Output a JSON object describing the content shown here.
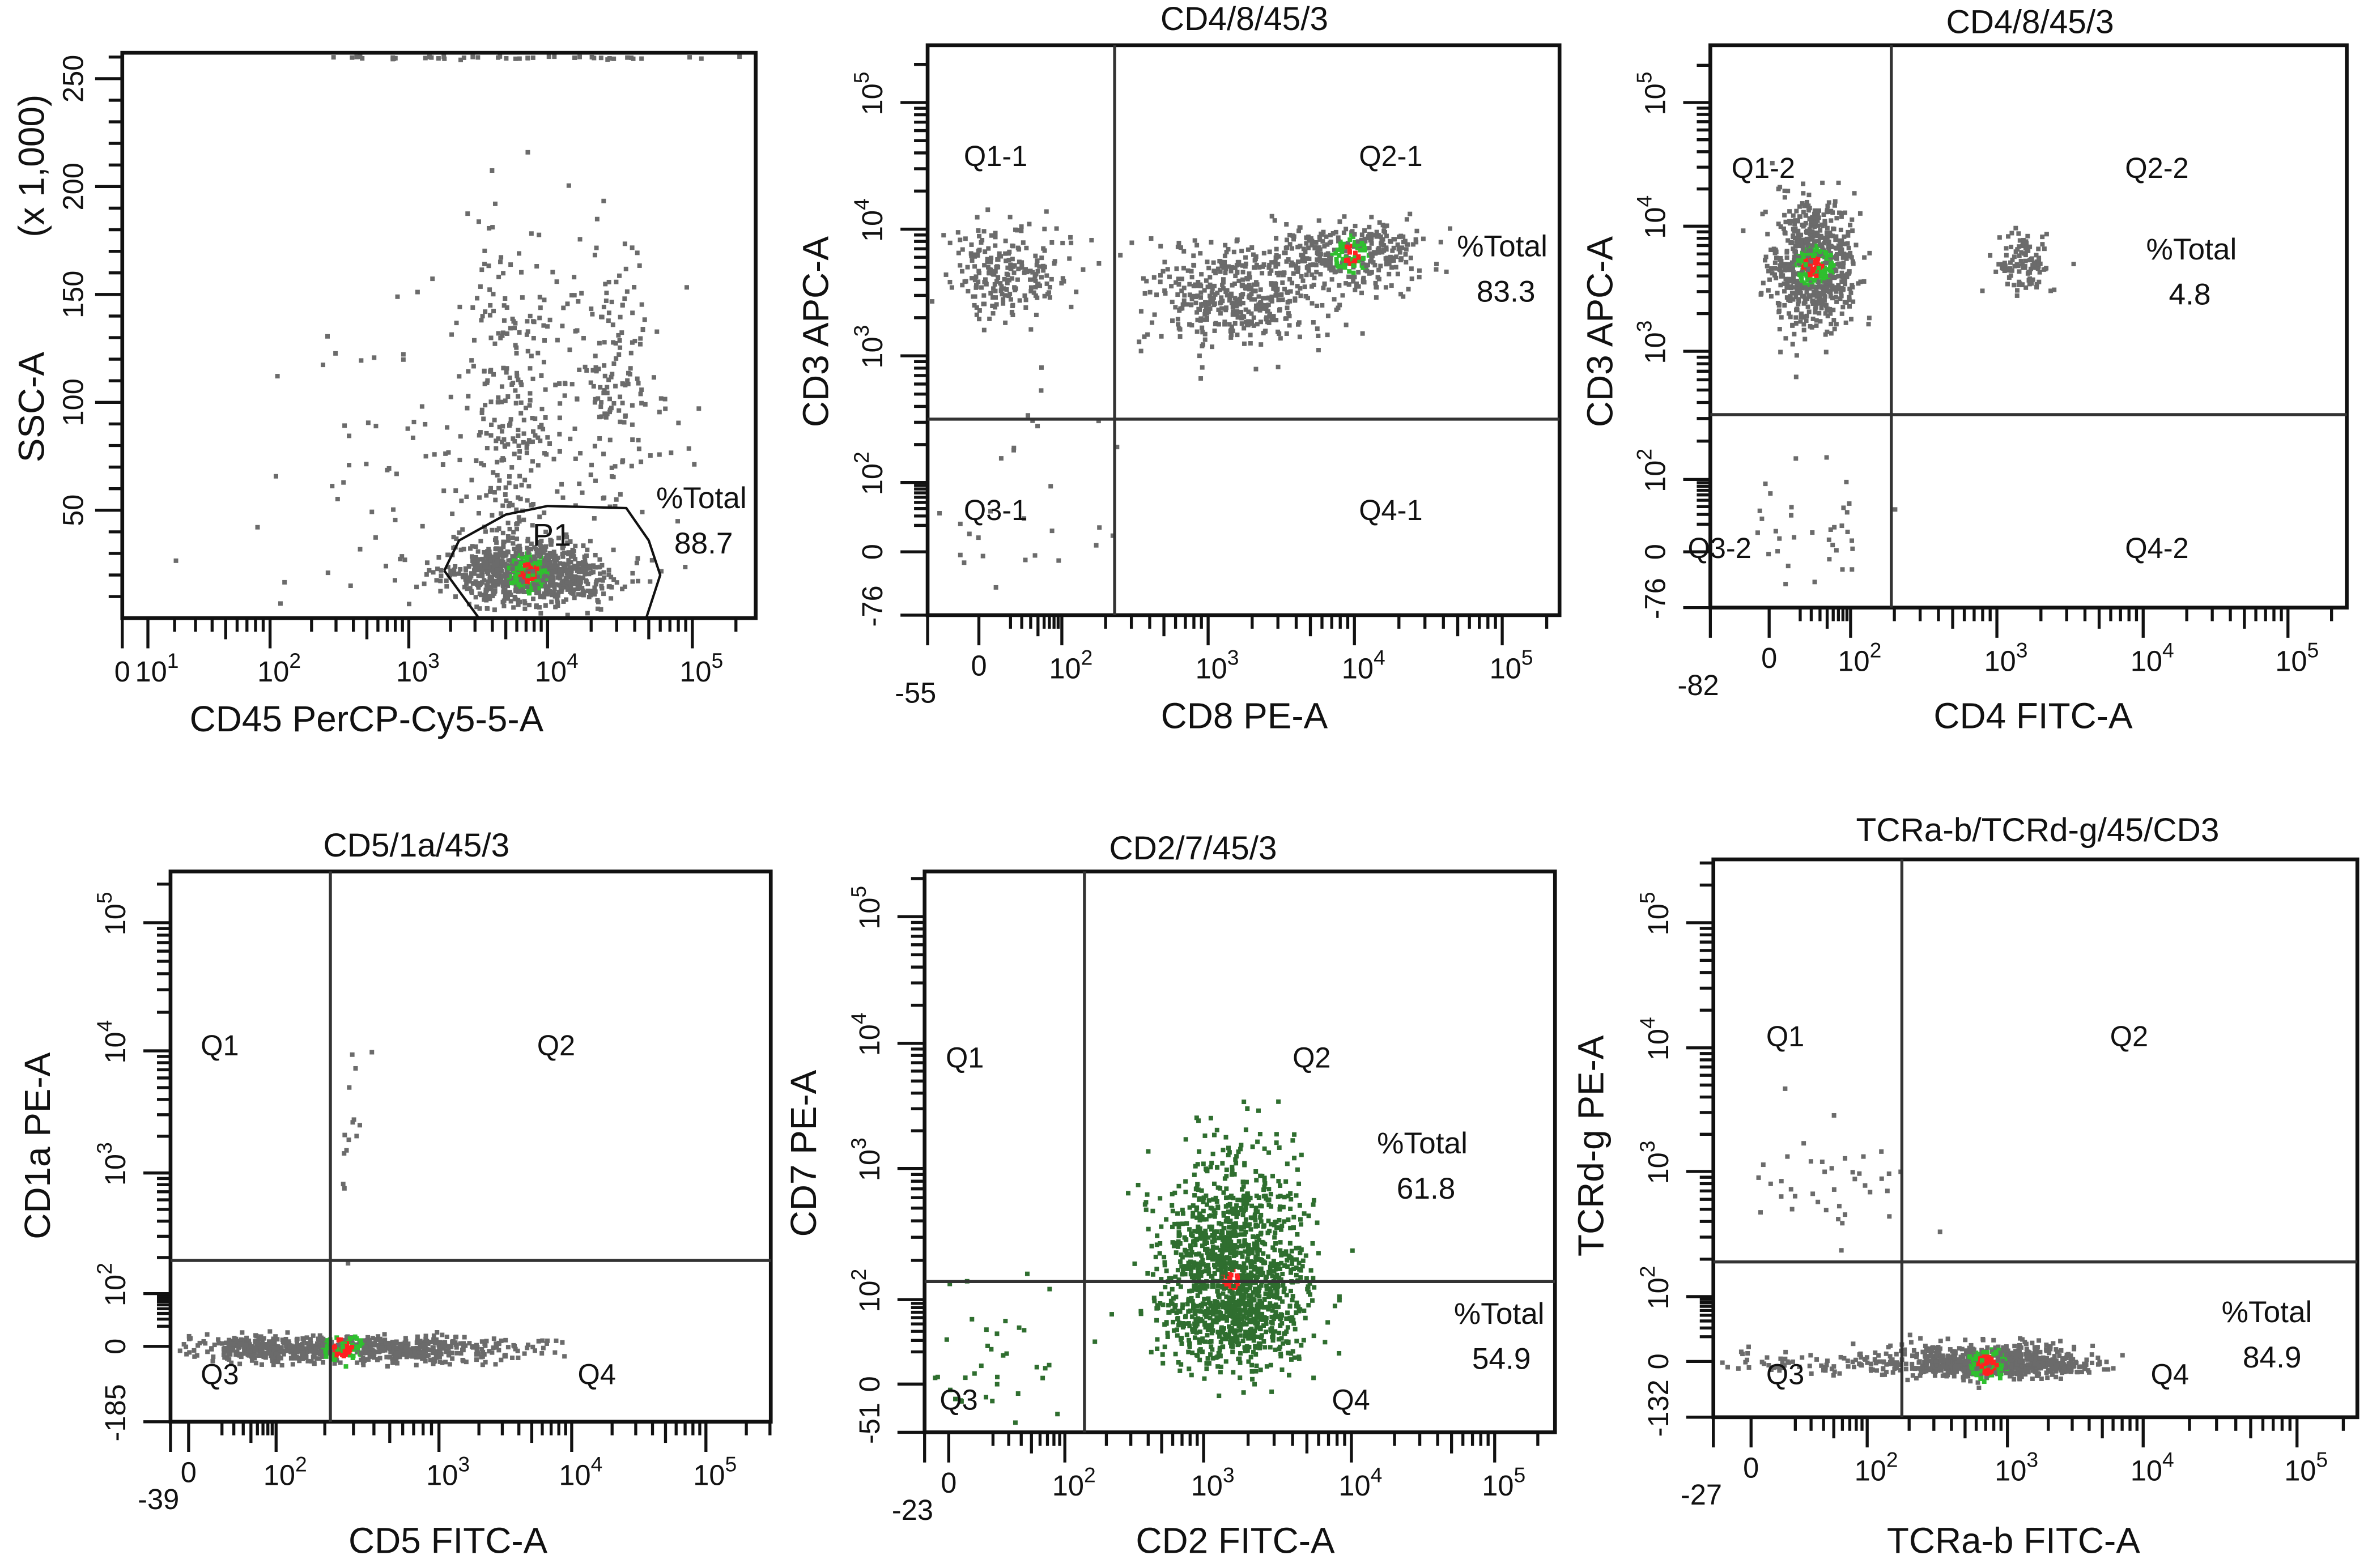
{
  "colors": {
    "events": "#6b6b6b",
    "mid_density": "#2fbf2f",
    "high_density": "#ff2020",
    "green_events": "#2f6e2f",
    "gate": "#111111"
  },
  "chart_data": [
    {
      "type": "scatter",
      "title": "",
      "xlabel": "CD45 PerCP-Cy5-5-A",
      "ylabel": "SSC-A",
      "ylabel_unit": "(x 1,000)",
      "x_scale": "biexponential",
      "y_scale": "linear",
      "ylim": [
        0,
        262
      ],
      "x_ticks": [
        {
          "base": "0",
          "exp": "",
          "v": 0
        },
        {
          "base": "10",
          "exp": "1",
          "v": 10
        },
        {
          "base": "10",
          "exp": "2",
          "v": 100
        },
        {
          "base": "10",
          "exp": "3",
          "v": 1000
        },
        {
          "base": "10",
          "exp": "4",
          "v": 10000
        },
        {
          "base": "10",
          "exp": "5",
          "v": 100000
        }
      ],
      "y_ticks": [
        {
          "base": "50",
          "exp": "",
          "v": 50
        },
        {
          "base": "100",
          "exp": "",
          "v": 100
        },
        {
          "base": "150",
          "exp": "",
          "v": 150
        },
        {
          "base": "200",
          "exp": "",
          "v": 200
        },
        {
          "base": "250",
          "exp": "",
          "v": 250
        }
      ],
      "gate": {
        "name": "P1",
        "percent_label": "%Total",
        "percent": "88.7",
        "polygon": [
          [
            1800,
            22
          ],
          [
            2300,
            36
          ],
          [
            5000,
            48
          ],
          [
            10000,
            52
          ],
          [
            35000,
            51
          ],
          [
            50000,
            36
          ],
          [
            60000,
            20
          ],
          [
            48000,
            0
          ],
          [
            3200,
            0
          ],
          [
            1800,
            22
          ]
        ]
      },
      "populations": [
        {
          "x": 7000,
          "y": 22,
          "sx": 0.28,
          "sy": 7,
          "n": 900,
          "core": true
        },
        {
          "x": 5500,
          "y": 100,
          "sx": 0.2,
          "sy": 40,
          "n": 260
        },
        {
          "x": 30000,
          "y": 115,
          "sx": 0.15,
          "sy": 30,
          "n": 140
        },
        {
          "x": 3000,
          "y": 60,
          "sx": 0.7,
          "sy": 50,
          "n": 160
        },
        {
          "x": 8000,
          "y": 261,
          "sx": 0.8,
          "sy": 0.5,
          "n": 60
        }
      ]
    },
    {
      "type": "scatter",
      "title": "CD4/8/45/3",
      "xlabel": "CD8 PE-A",
      "ylabel": "CD3 APC-A",
      "x_scale": "biexponential",
      "y_scale": "biexponential",
      "x_ticks": [
        {
          "base": "-55",
          "exp": "",
          "v": -55
        },
        {
          "base": "0",
          "exp": "",
          "v": 0
        },
        {
          "base": "10",
          "exp": "2",
          "v": 100
        },
        {
          "base": "10",
          "exp": "3",
          "v": 1000
        },
        {
          "base": "10",
          "exp": "4",
          "v": 10000
        },
        {
          "base": "10",
          "exp": "5",
          "v": 100000
        }
      ],
      "y_ticks": [
        {
          "base": "-76",
          "exp": "",
          "v": -76
        },
        {
          "base": "0",
          "exp": "",
          "v": 0
        },
        {
          "base": "10",
          "exp": "2",
          "v": 100
        },
        {
          "base": "10",
          "exp": "3",
          "v": 1000
        },
        {
          "base": "10",
          "exp": "4",
          "v": 10000
        },
        {
          "base": "10",
          "exp": "5",
          "v": 100000
        }
      ],
      "quadrants": [
        "Q1-1",
        "Q2-1",
        "Q3-1",
        "Q4-1"
      ],
      "stats": [
        {
          "label": "%Total",
          "value": "83.3"
        }
      ],
      "populations": [
        {
          "x": 15,
          "y": 5000,
          "sx": 0.35,
          "sy": 0.18,
          "n": 230
        },
        {
          "x": 1500,
          "y": 3000,
          "sx": 0.3,
          "sy": 0.2,
          "n": 450
        },
        {
          "x": 9000,
          "y": 6500,
          "sx": 0.25,
          "sy": 0.15,
          "n": 350,
          "core": true
        },
        {
          "x": 20,
          "y": 30,
          "sx": 0.6,
          "sy": 0.6,
          "n": 30
        }
      ]
    },
    {
      "type": "scatter",
      "title": "CD4/8/45/3",
      "xlabel": "CD4 FITC-A",
      "ylabel": "CD3 APC-A",
      "x_scale": "biexponential",
      "y_scale": "biexponential",
      "x_ticks": [
        {
          "base": "-82",
          "exp": "",
          "v": -82
        },
        {
          "base": "0",
          "exp": "",
          "v": 0
        },
        {
          "base": "10",
          "exp": "2",
          "v": 100
        },
        {
          "base": "10",
          "exp": "3",
          "v": 1000
        },
        {
          "base": "10",
          "exp": "4",
          "v": 10000
        },
        {
          "base": "10",
          "exp": "5",
          "v": 100000
        }
      ],
      "y_ticks": [
        {
          "base": "-76",
          "exp": "",
          "v": -76
        },
        {
          "base": "0",
          "exp": "",
          "v": 0
        },
        {
          "base": "10",
          "exp": "2",
          "v": 100
        },
        {
          "base": "10",
          "exp": "3",
          "v": 1000
        },
        {
          "base": "10",
          "exp": "4",
          "v": 10000
        },
        {
          "base": "10",
          "exp": "5",
          "v": 100000
        }
      ],
      "quadrants": [
        "Q1-2",
        "Q2-2",
        "Q3-2",
        "Q4-2"
      ],
      "stats": [
        {
          "label": "%Total",
          "value": "4.8"
        }
      ],
      "populations": [
        {
          "x": 30,
          "y": 5000,
          "sx": 0.25,
          "sy": 0.25,
          "n": 700,
          "core": true
        },
        {
          "x": 1500,
          "y": 5000,
          "sx": 0.1,
          "sy": 0.12,
          "n": 110
        },
        {
          "x": 30,
          "y": 20,
          "sx": 0.4,
          "sy": 0.4,
          "n": 35
        }
      ]
    },
    {
      "type": "scatter",
      "title": "CD5/1a/45/3",
      "xlabel": "CD5 FITC-A",
      "ylabel": "CD1a PE-A",
      "x_scale": "biexponential",
      "y_scale": "biexponential",
      "x_ticks": [
        {
          "base": "-39",
          "exp": "",
          "v": -39
        },
        {
          "base": "0",
          "exp": "",
          "v": 0
        },
        {
          "base": "10",
          "exp": "2",
          "v": 100
        },
        {
          "base": "10",
          "exp": "3",
          "v": 1000
        },
        {
          "base": "10",
          "exp": "4",
          "v": 10000
        },
        {
          "base": "10",
          "exp": "5",
          "v": 100000
        }
      ],
      "y_ticks": [
        {
          "base": "-185",
          "exp": "",
          "v": -185
        },
        {
          "base": "0",
          "exp": "",
          "v": 0
        },
        {
          "base": "10",
          "exp": "2",
          "v": 100
        },
        {
          "base": "10",
          "exp": "3",
          "v": 1000
        },
        {
          "base": "10",
          "exp": "4",
          "v": 10000
        },
        {
          "base": "10",
          "exp": "5",
          "v": 100000
        }
      ],
      "quadrants": [
        "Q1",
        "Q2",
        "Q3",
        "Q4"
      ],
      "stats": [],
      "populations": [
        {
          "x": 250,
          "y": 0,
          "sx": 0.55,
          "sy": 0.12,
          "n": 850,
          "core": true
        },
        {
          "x": 280,
          "y": 3000,
          "sx": 0.05,
          "sy": 0.5,
          "n": 15
        }
      ]
    },
    {
      "type": "scatter",
      "title": "CD2/7/45/3",
      "xlabel": "CD2 FITC-A",
      "ylabel": "CD7 PE-A",
      "x_scale": "biexponential",
      "y_scale": "biexponential",
      "color": "green",
      "x_ticks": [
        {
          "base": "-23",
          "exp": "",
          "v": -23
        },
        {
          "base": "0",
          "exp": "",
          "v": 0
        },
        {
          "base": "10",
          "exp": "2",
          "v": 100
        },
        {
          "base": "10",
          "exp": "3",
          "v": 1000
        },
        {
          "base": "10",
          "exp": "4",
          "v": 10000
        },
        {
          "base": "10",
          "exp": "5",
          "v": 100000
        }
      ],
      "y_ticks": [
        {
          "base": "-51",
          "exp": "",
          "v": -51
        },
        {
          "base": "0",
          "exp": "",
          "v": 0
        },
        {
          "base": "10",
          "exp": "2",
          "v": 100
        },
        {
          "base": "10",
          "exp": "3",
          "v": 1000
        },
        {
          "base": "10",
          "exp": "4",
          "v": 10000
        },
        {
          "base": "10",
          "exp": "5",
          "v": 100000
        }
      ],
      "quadrants": [
        "Q1",
        "Q2",
        "Q3",
        "Q4"
      ],
      "stats": [
        {
          "label": "%Total",
          "value": "61.8"
        },
        {
          "label": "%Total",
          "value": "54.9"
        }
      ],
      "populations": [
        {
          "x": 1500,
          "y": 150,
          "sx": 0.25,
          "sy": 0.45,
          "n": 1400,
          "core": true
        },
        {
          "x": 20,
          "y": 10,
          "sx": 0.5,
          "sy": 0.5,
          "n": 40
        }
      ]
    },
    {
      "type": "scatter",
      "title": "TCRa-b/TCRd-g/45/CD3",
      "xlabel": "TCRa-b FITC-A",
      "ylabel": "TCRd-g PE-A",
      "x_scale": "biexponential",
      "y_scale": "biexponential",
      "x_ticks": [
        {
          "base": "-27",
          "exp": "",
          "v": -27
        },
        {
          "base": "0",
          "exp": "",
          "v": 0
        },
        {
          "base": "10",
          "exp": "2",
          "v": 100
        },
        {
          "base": "10",
          "exp": "3",
          "v": 1000
        },
        {
          "base": "10",
          "exp": "4",
          "v": 10000
        },
        {
          "base": "10",
          "exp": "5",
          "v": 100000
        }
      ],
      "y_ticks": [
        {
          "base": "-132",
          "exp": "",
          "v": -132
        },
        {
          "base": "0",
          "exp": "",
          "v": 0
        },
        {
          "base": "10",
          "exp": "2",
          "v": 100
        },
        {
          "base": "10",
          "exp": "3",
          "v": 1000
        },
        {
          "base": "10",
          "exp": "4",
          "v": 10000
        },
        {
          "base": "10",
          "exp": "5",
          "v": 100000
        }
      ],
      "quadrants": [
        "Q1",
        "Q2",
        "Q3",
        "Q4"
      ],
      "stats": [
        {
          "label": "%Total",
          "value": "84.9"
        }
      ],
      "populations": [
        {
          "x": 700,
          "y": 0,
          "sx": 0.35,
          "sy": 0.14,
          "n": 900,
          "core": true
        },
        {
          "x": 40,
          "y": 800,
          "sx": 0.35,
          "sy": 0.25,
          "n": 40
        },
        {
          "x": 30,
          "y": 0,
          "sx": 0.4,
          "sy": 0.1,
          "n": 60
        }
      ]
    }
  ]
}
